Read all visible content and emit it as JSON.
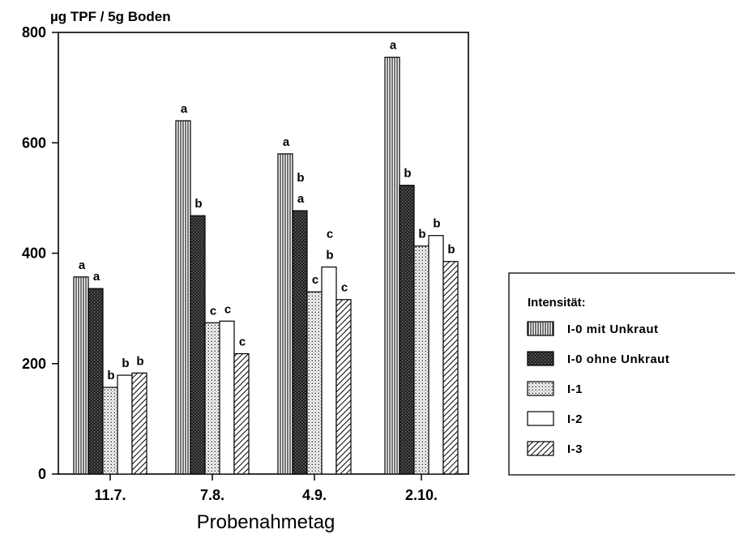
{
  "chart_data": {
    "type": "bar",
    "ylabel": "µg TPF / 5g Boden",
    "xlabel": "Probenahmetag",
    "ylim": [
      0,
      800
    ],
    "yticks": [
      0,
      200,
      400,
      600,
      800
    ],
    "categories": [
      "11.7.",
      "7.8.",
      "4.9.",
      "2.10."
    ],
    "legend_title": "Intensität:",
    "legend_position": "right",
    "grid": false,
    "series": [
      {
        "name": "I-0 mit Unkraut",
        "pattern": "vertical-lines",
        "values": [
          357,
          640,
          580,
          755
        ],
        "labels": [
          "a",
          "a",
          "a",
          "a"
        ]
      },
      {
        "name": "I-0 ohne Unkraut",
        "pattern": "dark-crosshatch",
        "values": [
          336,
          468,
          477,
          523
        ],
        "labels": [
          "a",
          "b",
          "b\na",
          "b"
        ]
      },
      {
        "name": "I-1",
        "pattern": "dots",
        "values": [
          157,
          274,
          330,
          413
        ],
        "labels": [
          "b",
          "c",
          "c",
          "b"
        ]
      },
      {
        "name": "I-2",
        "pattern": "white",
        "values": [
          179,
          277,
          375,
          432
        ],
        "labels": [
          "b",
          "c",
          "c\nb",
          "b"
        ]
      },
      {
        "name": "I-3",
        "pattern": "diagonal-lines",
        "values": [
          183,
          218,
          316,
          385
        ],
        "labels": [
          "b",
          "c",
          "c",
          "b"
        ]
      }
    ]
  }
}
